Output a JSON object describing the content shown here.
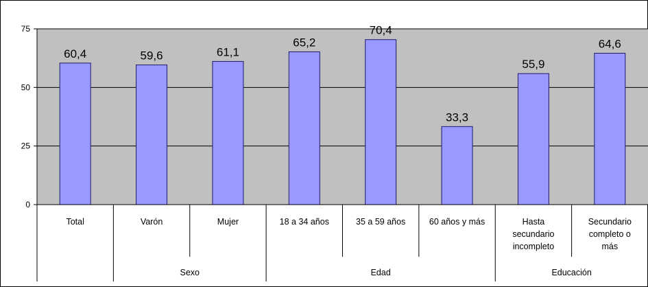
{
  "chart_data": {
    "type": "bar",
    "title": "",
    "xlabel": "",
    "ylabel": "",
    "ylim": [
      0,
      75
    ],
    "yticks": [
      "0",
      "25",
      "50",
      "75"
    ],
    "grid": true,
    "legend": "none",
    "colors": {
      "bar_fill": "#9999ff",
      "bar_stroke": "#1a1a6e",
      "plot_bg": "#c0c0c0",
      "gridline": "#000000"
    },
    "categories": [
      {
        "lines": [
          "Total"
        ],
        "group": ""
      },
      {
        "lines": [
          "Varón"
        ],
        "group": "Sexo"
      },
      {
        "lines": [
          "Mujer"
        ],
        "group": "Sexo"
      },
      {
        "lines": [
          "18 a 34 años"
        ],
        "group": "Edad"
      },
      {
        "lines": [
          "35 a 59 años"
        ],
        "group": "Edad"
      },
      {
        "lines": [
          "60 años y más"
        ],
        "group": "Edad"
      },
      {
        "lines": [
          "Hasta",
          "secundario",
          "incompleto"
        ],
        "group": "Educación"
      },
      {
        "lines": [
          "Secundario",
          "completo o",
          "más"
        ],
        "group": "Educación"
      }
    ],
    "values": [
      60.4,
      59.6,
      61.1,
      65.2,
      70.4,
      33.3,
      55.9,
      64.6
    ],
    "value_labels": [
      "60,4",
      "59,6",
      "61,1",
      "65,2",
      "70,4",
      "33,3",
      "55,9",
      "64,6"
    ],
    "groups": [
      {
        "name": "Sexo",
        "first": 1,
        "last": 2
      },
      {
        "name": "Edad",
        "first": 3,
        "last": 5
      },
      {
        "name": "Educación",
        "first": 6,
        "last": 7
      }
    ]
  }
}
